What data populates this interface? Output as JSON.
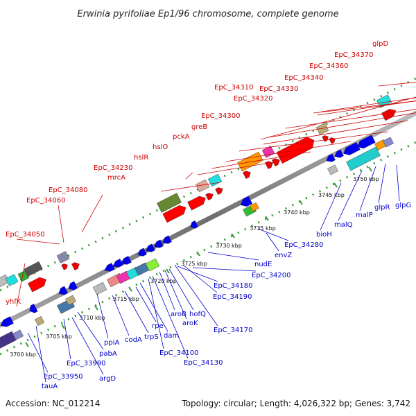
{
  "title": "Erwinia pyrifoliae Ep1/96 chromosome, complete genome",
  "footer": {
    "accession": "Accession: NC_012214",
    "summary": "Topology: circular; Length: 4,026,322 bp; Genes: 3,742"
  },
  "scale_ticks": [
    "3700 kbp",
    "3705 kbp",
    "3710 kbp",
    "3715 kbp",
    "3720 kbp",
    "3725 kbp",
    "3730 kbp",
    "3735 kbp",
    "3740 kbp",
    "3745 kbp",
    "3750 kbp"
  ],
  "top_labels": [
    "yhfK",
    "EpC_34050",
    "EpC_34060",
    "EpC_34080",
    "mrcA",
    "EpC_34230",
    "hslR",
    "hslO",
    "pckA",
    "greB",
    "EpC_34300",
    "EpC_34310",
    "EpC_34320",
    "EpC_34330",
    "EpC_34340",
    "EpC_34360",
    "EpC_34370",
    "glpD"
  ],
  "bottom_labels": [
    "tauA",
    "EpC_33950",
    "EpC_33990",
    "argD",
    "pabA",
    "ppiA",
    "codA",
    "trpS",
    "rpe",
    "dam",
    "EpC_34100",
    "EpC_34130",
    "aroB",
    "aroK",
    "hofQ",
    "EpC_34170",
    "EpC_34180",
    "EpC_34190",
    "EpC_34200",
    "nudE",
    "envZ",
    "EpC_34280",
    "bioH",
    "malQ",
    "malP",
    "glpR",
    "glpG"
  ],
  "colors": {
    "forward_label": "#cc0000",
    "reverse_label": "#0000cc",
    "backbone": "#8c8c8c",
    "track_dots": "#2e9b2e"
  }
}
